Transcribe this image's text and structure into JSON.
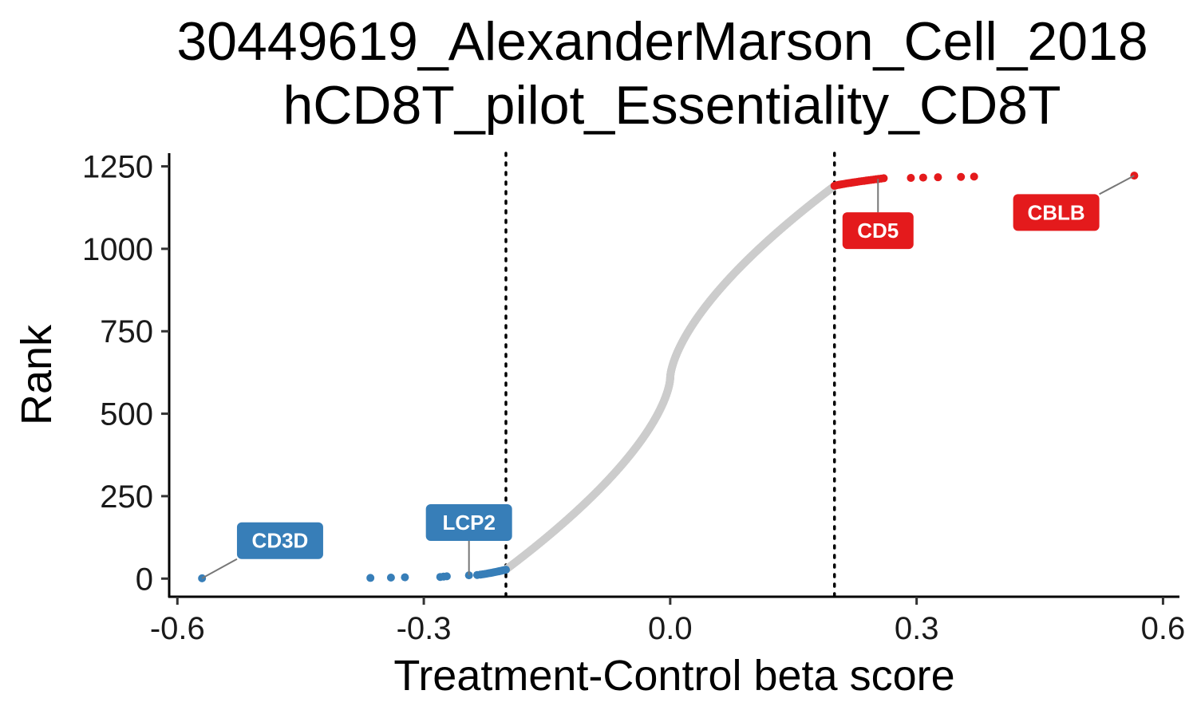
{
  "chart_data": {
    "type": "scatter",
    "title": "30449619_AlexanderMarson_Cell_2018",
    "subtitle": "hCD8T_pilot_Essentiality_CD8T",
    "xlabel": "Treatment-Control beta score",
    "ylabel": "Rank",
    "xlim": [
      -0.61,
      0.62
    ],
    "ylim": [
      -55,
      1290
    ],
    "x_ticks": [
      -0.6,
      -0.3,
      0.0,
      0.3,
      0.6
    ],
    "x_tick_labels": [
      "-0.6",
      "-0.3",
      "0.0",
      "0.3",
      "0.6"
    ],
    "y_ticks": [
      0,
      250,
      500,
      750,
      1000,
      1250
    ],
    "y_tick_labels": [
      "0",
      "250",
      "500",
      "750",
      "1000",
      "1250"
    ],
    "thresholds": [
      -0.2,
      0.2
    ],
    "grid": false,
    "legend": "none",
    "colors": {
      "negative": "#377eb8",
      "neutral": "#cccccc",
      "positive": "#e41a1c",
      "threshold_line": "#000000"
    },
    "curve": {
      "n_points": 1222,
      "x_start": -0.2,
      "x_end": 0.2,
      "rank_start": 28,
      "rank_end": 1190,
      "center": 0.0
    },
    "negative_points": [
      {
        "x": -0.57,
        "y": 1
      },
      {
        "x": -0.365,
        "y": 2
      },
      {
        "x": -0.34,
        "y": 3
      },
      {
        "x": -0.323,
        "y": 4
      },
      {
        "x": -0.28,
        "y": 5
      },
      {
        "x": -0.276,
        "y": 6
      },
      {
        "x": -0.272,
        "y": 7
      },
      {
        "x": -0.245,
        "y": 10
      }
    ],
    "negative_cluster": {
      "x_start": -0.235,
      "x_end": -0.2,
      "rank_start": 11,
      "rank_end": 27
    },
    "positive_cluster": {
      "x_start": 0.2,
      "x_end": 0.26,
      "rank_start": 1191,
      "rank_end": 1214
    },
    "positive_points": [
      {
        "x": 0.293,
        "y": 1215
      },
      {
        "x": 0.308,
        "y": 1216
      },
      {
        "x": 0.326,
        "y": 1217
      },
      {
        "x": 0.354,
        "y": 1218
      },
      {
        "x": 0.37,
        "y": 1219
      },
      {
        "x": 0.565,
        "y": 1222
      }
    ],
    "labels": [
      {
        "text": "CD3D",
        "x": -0.57,
        "y": 1,
        "lx": -0.475,
        "ly": 115,
        "group": "negative"
      },
      {
        "text": "LCP2",
        "x": -0.245,
        "y": 10,
        "lx": -0.245,
        "ly": 170,
        "group": "negative"
      },
      {
        "text": "CD5",
        "x": 0.253,
        "y": 1212,
        "lx": 0.253,
        "ly": 1055,
        "group": "positive"
      },
      {
        "text": "CBLB",
        "x": 0.565,
        "y": 1222,
        "lx": 0.47,
        "ly": 1110,
        "group": "positive"
      }
    ]
  }
}
